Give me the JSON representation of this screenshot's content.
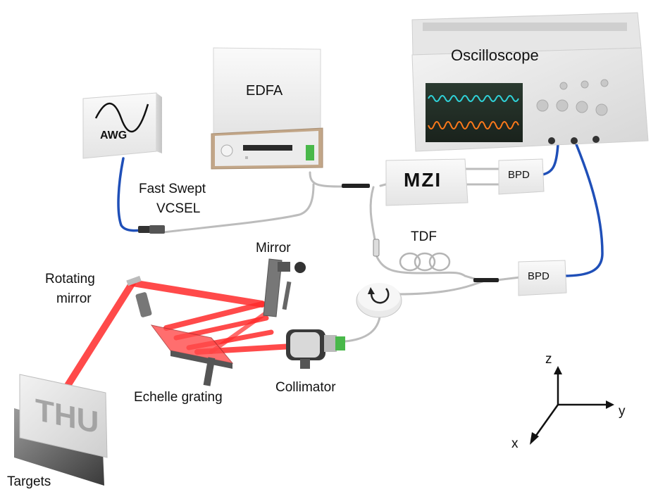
{
  "labels": {
    "awg": "AWG",
    "edfa": "EDFA",
    "oscilloscope": "Oscilloscope",
    "mzi": "MZI",
    "bpd_top": "BPD",
    "bpd_bottom": "BPD",
    "tdf": "TDF",
    "fast_swept_line1": "Fast Swept",
    "fast_swept_line2": "VCSEL",
    "mirror": "Mirror",
    "rotating_line1": "Rotating",
    "rotating_line2": "mirror",
    "echelle": "Echelle grating",
    "collimator": "Collimator",
    "targets": "Targets",
    "target_text": "THU",
    "axis_z": "z",
    "axis_y": "y",
    "axis_x": "x"
  },
  "colors": {
    "beam": "#ff2a2a",
    "fiber": "#bcbcbc",
    "coax": "#1f4fb8",
    "scope_wave_a": "#2fd2d8",
    "scope_wave_b": "#ff7a1a",
    "connector_green": "#49b84a"
  }
}
